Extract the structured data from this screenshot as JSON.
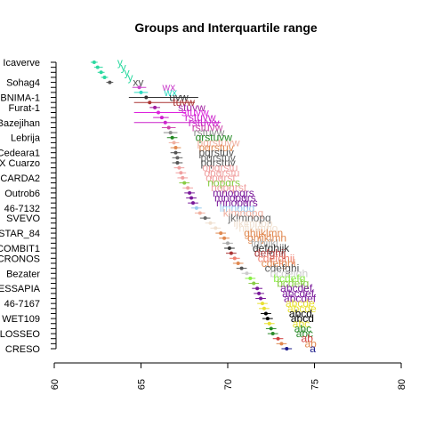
{
  "chart_data": {
    "type": "scatter",
    "title": "Groups and Interquartile range",
    "xlabel": "",
    "ylabel": "",
    "xlim": [
      60,
      80
    ],
    "xticks": [
      60,
      65,
      70,
      75,
      80
    ],
    "grid": false,
    "shown_labels": [
      "Icaverve",
      "Sohag4",
      "BNIMA-1",
      "Furat-1",
      "Bazejihan",
      "Lebrija",
      "Cedeara1",
      "X Cuarzo",
      "CARDA2",
      "Outrob6",
      "46-7132",
      "SVEVO",
      "STAR_84",
      "COMBIT1",
      "CRONOS",
      "Bezater",
      "ESSAPIA",
      "46-7167",
      "WET109",
      "COLOSSEO",
      "CRESO"
    ],
    "groups": [
      {
        "name": "Icaverve",
        "mean": 62.3,
        "q1": 62.1,
        "q3": 62.5,
        "letters": "y",
        "color": "#2bd9a0"
      },
      {
        "name": "",
        "mean": 62.5,
        "q1": 62.3,
        "q3": 62.8,
        "letters": "y",
        "color": "#2bd9a0"
      },
      {
        "name": "",
        "mean": 62.7,
        "q1": 62.5,
        "q3": 62.9,
        "letters": "y",
        "color": "#2bd9a0"
      },
      {
        "name": "",
        "mean": 62.9,
        "q1": 62.7,
        "q3": 63.1,
        "letters": "y",
        "color": "#2bd9a0"
      },
      {
        "name": "Sohag4",
        "mean": 63.2,
        "q1": 63.0,
        "q3": 63.4,
        "letters": "xy",
        "color": "#555555"
      },
      {
        "name": "",
        "mean": 64.9,
        "q1": 64.5,
        "q3": 65.3,
        "letters": "wx",
        "color": "#cc44cc"
      },
      {
        "name": "",
        "mean": 65.0,
        "q1": 64.6,
        "q3": 65.4,
        "letters": "wx",
        "color": "#2bd9c0"
      },
      {
        "name": "BNIMA-1",
        "mean": 65.3,
        "q1": 64.3,
        "q3": 68.3,
        "letters": "uvw",
        "color": "#333333"
      },
      {
        "name": "",
        "mean": 65.5,
        "q1": 64.6,
        "q3": 68.1,
        "letters": "tuvw",
        "color": "#aa3333"
      },
      {
        "name": "Furat-1",
        "mean": 65.8,
        "q1": 65.5,
        "q3": 66.1,
        "letters": "stuvw",
        "color": "#a020a0"
      },
      {
        "name": "",
        "mean": 66.0,
        "q1": 64.6,
        "q3": 67.6,
        "letters": "stuvw",
        "color": "#dd22dd"
      },
      {
        "name": "",
        "mean": 66.2,
        "q1": 65.7,
        "q3": 66.6,
        "letters": "rstuvw",
        "color": "#cc22cc"
      },
      {
        "name": "Bazejihan",
        "mean": 66.4,
        "q1": 64.6,
        "q3": 69.6,
        "letters": "rstuvw",
        "color": "#cc22cc"
      },
      {
        "name": "",
        "mean": 66.6,
        "q1": 66.2,
        "q3": 67.0,
        "letters": "rstuvw",
        "color": "#cc44aa"
      },
      {
        "name": "",
        "mean": 66.7,
        "q1": 66.3,
        "q3": 67.1,
        "letters": "rstuvw",
        "color": "#8c8c8c"
      },
      {
        "name": "Lebrija",
        "mean": 66.8,
        "q1": 66.5,
        "q3": 67.1,
        "letters": "qrstuvw",
        "color": "#228822"
      },
      {
        "name": "",
        "mean": 66.9,
        "q1": 66.6,
        "q3": 67.2,
        "letters": "pqrstuvw",
        "color": "#f0b0a0"
      },
      {
        "name": "",
        "mean": 67.0,
        "q1": 66.7,
        "q3": 67.3,
        "letters": "pqrstuv",
        "color": "#e08850"
      },
      {
        "name": "Cedeara1",
        "mean": 67.0,
        "q1": 66.7,
        "q3": 67.3,
        "letters": "pqrstuv",
        "color": "#555555"
      },
      {
        "name": "",
        "mean": 67.1,
        "q1": 66.8,
        "q3": 67.4,
        "letters": "pqrstuv",
        "color": "#666666"
      },
      {
        "name": "X Cuarzo",
        "mean": 67.1,
        "q1": 66.8,
        "q3": 67.4,
        "letters": "pqrstuv",
        "color": "#555555"
      },
      {
        "name": "",
        "mean": 67.2,
        "q1": 66.9,
        "q3": 67.5,
        "letters": "opqrstu",
        "color": "#f0a0a0"
      },
      {
        "name": "",
        "mean": 67.3,
        "q1": 67.0,
        "q3": 67.6,
        "letters": "opqrstu",
        "color": "#f0a0a0"
      },
      {
        "name": "CARDA2",
        "mean": 67.4,
        "q1": 67.1,
        "q3": 67.7,
        "letters": "opqrst",
        "color": "#f0a0a0"
      },
      {
        "name": "",
        "mean": 67.5,
        "q1": 67.2,
        "q3": 67.8,
        "letters": "nopqrs",
        "color": "#88cc44"
      },
      {
        "name": "",
        "mean": 67.7,
        "q1": 67.4,
        "q3": 68.0,
        "letters": "nopqrst",
        "color": "#f0a0a0"
      },
      {
        "name": "Outrob6",
        "mean": 67.8,
        "q1": 67.5,
        "q3": 68.1,
        "letters": "mnopqrs",
        "color": "#7a1a9a"
      },
      {
        "name": "",
        "mean": 67.9,
        "q1": 67.6,
        "q3": 68.2,
        "letters": "mnopqrs",
        "color": "#7a1a9a"
      },
      {
        "name": "",
        "mean": 68.0,
        "q1": 67.7,
        "q3": 68.3,
        "letters": "mnopqrs",
        "color": "#7a1a9a"
      },
      {
        "name": "46-7132",
        "mean": 68.2,
        "q1": 67.9,
        "q3": 68.5,
        "letters": "lmnopq",
        "color": "#99ccee"
      },
      {
        "name": "",
        "mean": 68.4,
        "q1": 68.1,
        "q3": 68.7,
        "letters": "klmnopq",
        "color": "#f0b0a0"
      },
      {
        "name": "SVEVO",
        "mean": 68.7,
        "q1": 68.4,
        "q3": 69.0,
        "letters": "jklmnopq",
        "color": "#666666"
      },
      {
        "name": "",
        "mean": 69.0,
        "q1": 68.7,
        "q3": 69.3,
        "letters": "ijklmnop",
        "color": "#f0e0d0"
      },
      {
        "name": "",
        "mean": 69.3,
        "q1": 69.0,
        "q3": 69.6,
        "letters": "hijklmno",
        "color": "#f0e0d0"
      },
      {
        "name": "STAR_84",
        "mean": 69.6,
        "q1": 69.3,
        "q3": 69.9,
        "letters": "ghijklmn",
        "color": "#e08850"
      },
      {
        "name": "",
        "mean": 69.8,
        "q1": 69.5,
        "q3": 70.1,
        "letters": "ghijklmn",
        "color": "#e08850"
      },
      {
        "name": "",
        "mean": 70.0,
        "q1": 69.7,
        "q3": 70.3,
        "letters": "fghijkl",
        "color": "#aaaaaa"
      },
      {
        "name": "COMBIT1",
        "mean": 70.1,
        "q1": 69.8,
        "q3": 70.4,
        "letters": "defghijk",
        "color": "#333333"
      },
      {
        "name": "",
        "mean": 70.2,
        "q1": 69.9,
        "q3": 70.5,
        "letters": "defghij",
        "color": "#aa3333"
      },
      {
        "name": "CRONOS",
        "mean": 70.4,
        "q1": 70.1,
        "q3": 70.7,
        "letters": "cdefghij",
        "color": "#f08070"
      },
      {
        "name": "",
        "mean": 70.6,
        "q1": 70.3,
        "q3": 70.9,
        "letters": "cdefghi",
        "color": "#e08850"
      },
      {
        "name": "",
        "mean": 70.8,
        "q1": 70.5,
        "q3": 71.1,
        "letters": "cdefghi",
        "color": "#555555"
      },
      {
        "name": "Bezater",
        "mean": 71.1,
        "q1": 70.8,
        "q3": 71.4,
        "letters": "bcdefgh",
        "color": "#cccccc"
      },
      {
        "name": "",
        "mean": 71.3,
        "q1": 71.0,
        "q3": 71.6,
        "letters": "bcdefg",
        "color": "#88ee44"
      },
      {
        "name": "",
        "mean": 71.5,
        "q1": 71.2,
        "q3": 71.8,
        "letters": "bcdefg",
        "color": "#88cc44"
      },
      {
        "name": "ESSAPIA",
        "mean": 71.7,
        "q1": 71.4,
        "q3": 72.0,
        "letters": "abcdef",
        "color": "#7a1a9a"
      },
      {
        "name": "",
        "mean": 71.8,
        "q1": 71.5,
        "q3": 72.1,
        "letters": "abcdef",
        "color": "#7a1a9a"
      },
      {
        "name": "",
        "mean": 71.9,
        "q1": 71.6,
        "q3": 72.2,
        "letters": "abcdef",
        "color": "#7a1a9a"
      },
      {
        "name": "46-7167",
        "mean": 72.0,
        "q1": 71.7,
        "q3": 72.3,
        "letters": "abcde",
        "color": "#e8e030"
      },
      {
        "name": "",
        "mean": 72.1,
        "q1": 71.8,
        "q3": 72.4,
        "letters": "abcde",
        "color": "#e8e030"
      },
      {
        "name": "",
        "mean": 72.2,
        "q1": 71.9,
        "q3": 72.5,
        "letters": "abcd",
        "color": "#000000"
      },
      {
        "name": "WET109",
        "mean": 72.3,
        "q1": 72.0,
        "q3": 72.6,
        "letters": "abcd",
        "color": "#000000"
      },
      {
        "name": "",
        "mean": 72.4,
        "q1": 72.1,
        "q3": 72.7,
        "letters": "abc",
        "color": "#e8e030"
      },
      {
        "name": "",
        "mean": 72.5,
        "q1": 72.2,
        "q3": 72.8,
        "letters": "abc",
        "color": "#228822"
      },
      {
        "name": "COLOSSEO",
        "mean": 72.6,
        "q1": 72.3,
        "q3": 72.9,
        "letters": "abc",
        "color": "#2a8a2a"
      },
      {
        "name": "",
        "mean": 72.9,
        "q1": 72.6,
        "q3": 73.2,
        "letters": "ab",
        "color": "#d04040"
      },
      {
        "name": "",
        "mean": 73.1,
        "q1": 72.8,
        "q3": 73.4,
        "letters": "ab",
        "color": "#e08850"
      },
      {
        "name": "CRESO",
        "mean": 73.4,
        "q1": 73.1,
        "q3": 73.7,
        "letters": "a",
        "color": "#1a1a8a"
      }
    ]
  }
}
